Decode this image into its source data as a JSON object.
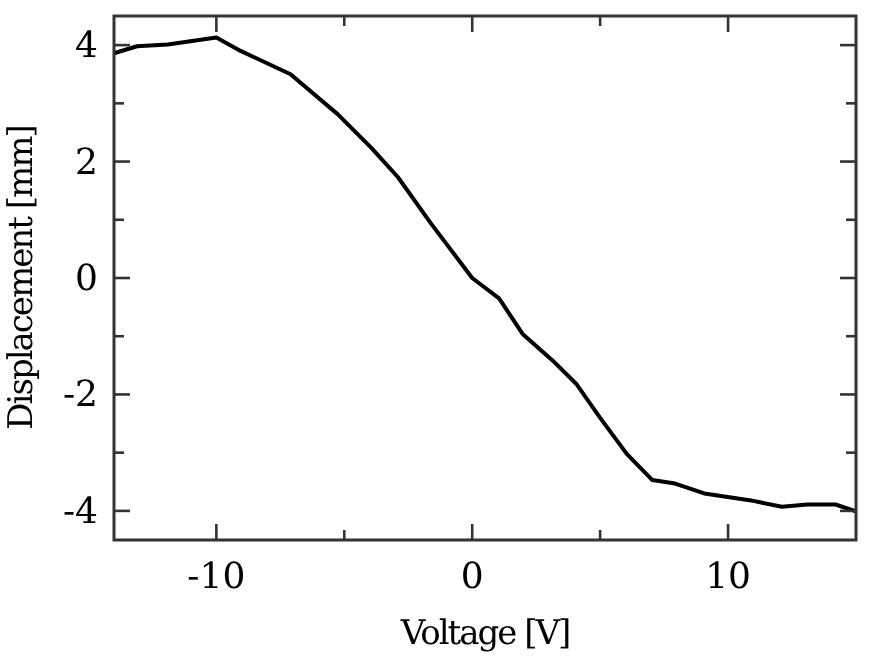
{
  "chart_data": {
    "type": "line",
    "xlabel": "Voltage [V]",
    "ylabel": "Displacement [mm]",
    "x": [
      -14,
      -13.1,
      -11.9,
      -10,
      -9.05,
      -7.1,
      -5.25,
      -3.95,
      -2.9,
      -1.6,
      0,
      1.05,
      1.97,
      3.15,
      4.07,
      4.98,
      6.04,
      7.04,
      7.93,
      9.07,
      10.9,
      12.1,
      13.1,
      14.2,
      15
    ],
    "series": [
      {
        "color": "#000000",
        "values": [
          3.86,
          3.98,
          4.01,
          4.13,
          3.9,
          3.5,
          2.81,
          2.24,
          1.73,
          0.93,
          0,
          -0.35,
          -0.96,
          -1.42,
          -1.82,
          -2.39,
          -3.02,
          -3.47,
          -3.53,
          -3.7,
          -3.82,
          -3.93,
          -3.89,
          -3.89,
          -4.01
        ]
      }
    ],
    "xlim": [
      -14,
      15
    ],
    "ylim": [
      -4.5,
      4.5
    ],
    "xticks": [
      -10,
      {
        "value": -5,
        "label": null
      },
      0,
      {
        "value": 5,
        "label": null
      },
      10
    ],
    "yticks": [
      -4,
      {
        "value": -3,
        "label": null
      },
      -2,
      {
        "value": -1,
        "label": null
      },
      0,
      {
        "value": 1,
        "label": null
      },
      2,
      {
        "value": 3,
        "label": null
      },
      4
    ],
    "grid": false,
    "marker": "none",
    "line_style": "solid"
  }
}
